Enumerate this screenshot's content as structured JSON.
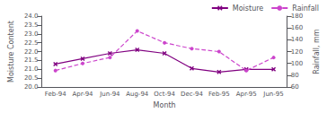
{
  "chart_data": {
    "type": "line",
    "categories": [
      "Feb-94",
      "Apr-94",
      "Jun-94",
      "Aug-94",
      "Oct-94",
      "Dec-94",
      "Feb-95",
      "Apr-95",
      "Jun-95"
    ],
    "series": [
      {
        "name": "Moisture",
        "color": "#800080",
        "values": [
          21.3,
          21.6,
          21.9,
          22.1,
          21.9,
          21.05,
          20.85,
          21.0,
          21.0
        ],
        "marker": "x",
        "line_style": "solid"
      },
      {
        "name": "Rainfall",
        "color": "#cc44cc",
        "values": [
          88,
          100,
          110,
          155,
          135,
          125,
          120,
          88,
          110
        ],
        "axis": "y2",
        "marker": "circle",
        "line_style": "dashed"
      }
    ],
    "xlabel": "Month",
    "ylabel": "Moisture Content",
    "y2label": "Rainfall, mm",
    "ylim": [
      20.0,
      24.0
    ],
    "yticks": [
      {
        "value": 20.0,
        "label": "20.0"
      },
      20.5,
      {
        "value": 21.0,
        "label": "21.0"
      },
      21.5,
      {
        "value": 22.0,
        "label": "22.0"
      },
      22.5,
      {
        "value": 23.0,
        "label": "23.0"
      },
      23.5,
      {
        "value": 24.0,
        "label": "24.0"
      }
    ],
    "y2lim": [
      60,
      180
    ],
    "y2ticks": [
      60,
      80,
      100,
      120,
      140,
      160,
      180
    ],
    "legend": "upper right",
    "grid": false
  }
}
